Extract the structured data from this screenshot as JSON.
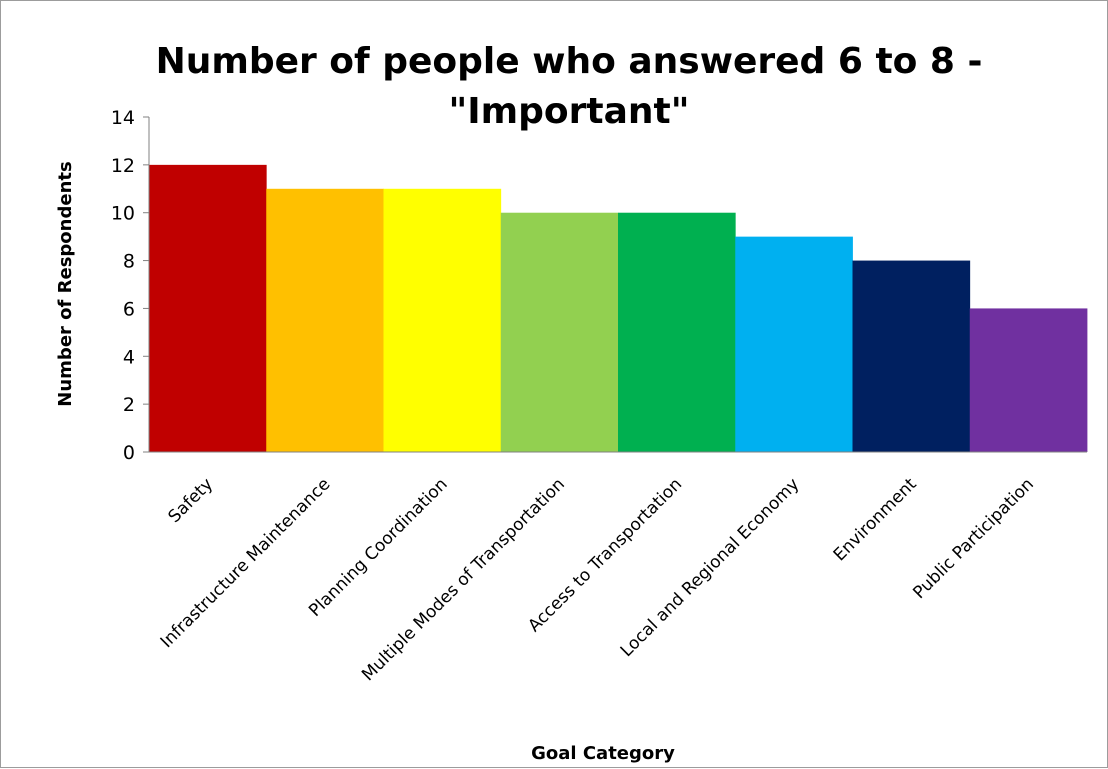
{
  "chart_data": {
    "type": "bar",
    "title": "Number of people who answered 6 to 8 -",
    "title_line2": "\"Important\"",
    "xlabel": "Goal Category",
    "ylabel": "Number of Respondents",
    "ylim": [
      0,
      14
    ],
    "yticks": [
      0,
      2,
      4,
      6,
      8,
      10,
      12,
      14
    ],
    "grid": false,
    "legend": "none",
    "categories": [
      "Safety",
      "Infrastructure Maintenance",
      "Planning Coordination",
      "Multiple Modes of Transportation",
      "Access to Transportation",
      "Local and Regional Economy",
      "Environment",
      "Public Participation"
    ],
    "values": [
      12,
      11,
      11,
      10,
      10,
      9,
      8,
      6
    ],
    "colors": [
      "#c00000",
      "#ffc000",
      "#ffff00",
      "#92d050",
      "#00b050",
      "#00b0f0",
      "#002060",
      "#7030a0"
    ]
  }
}
